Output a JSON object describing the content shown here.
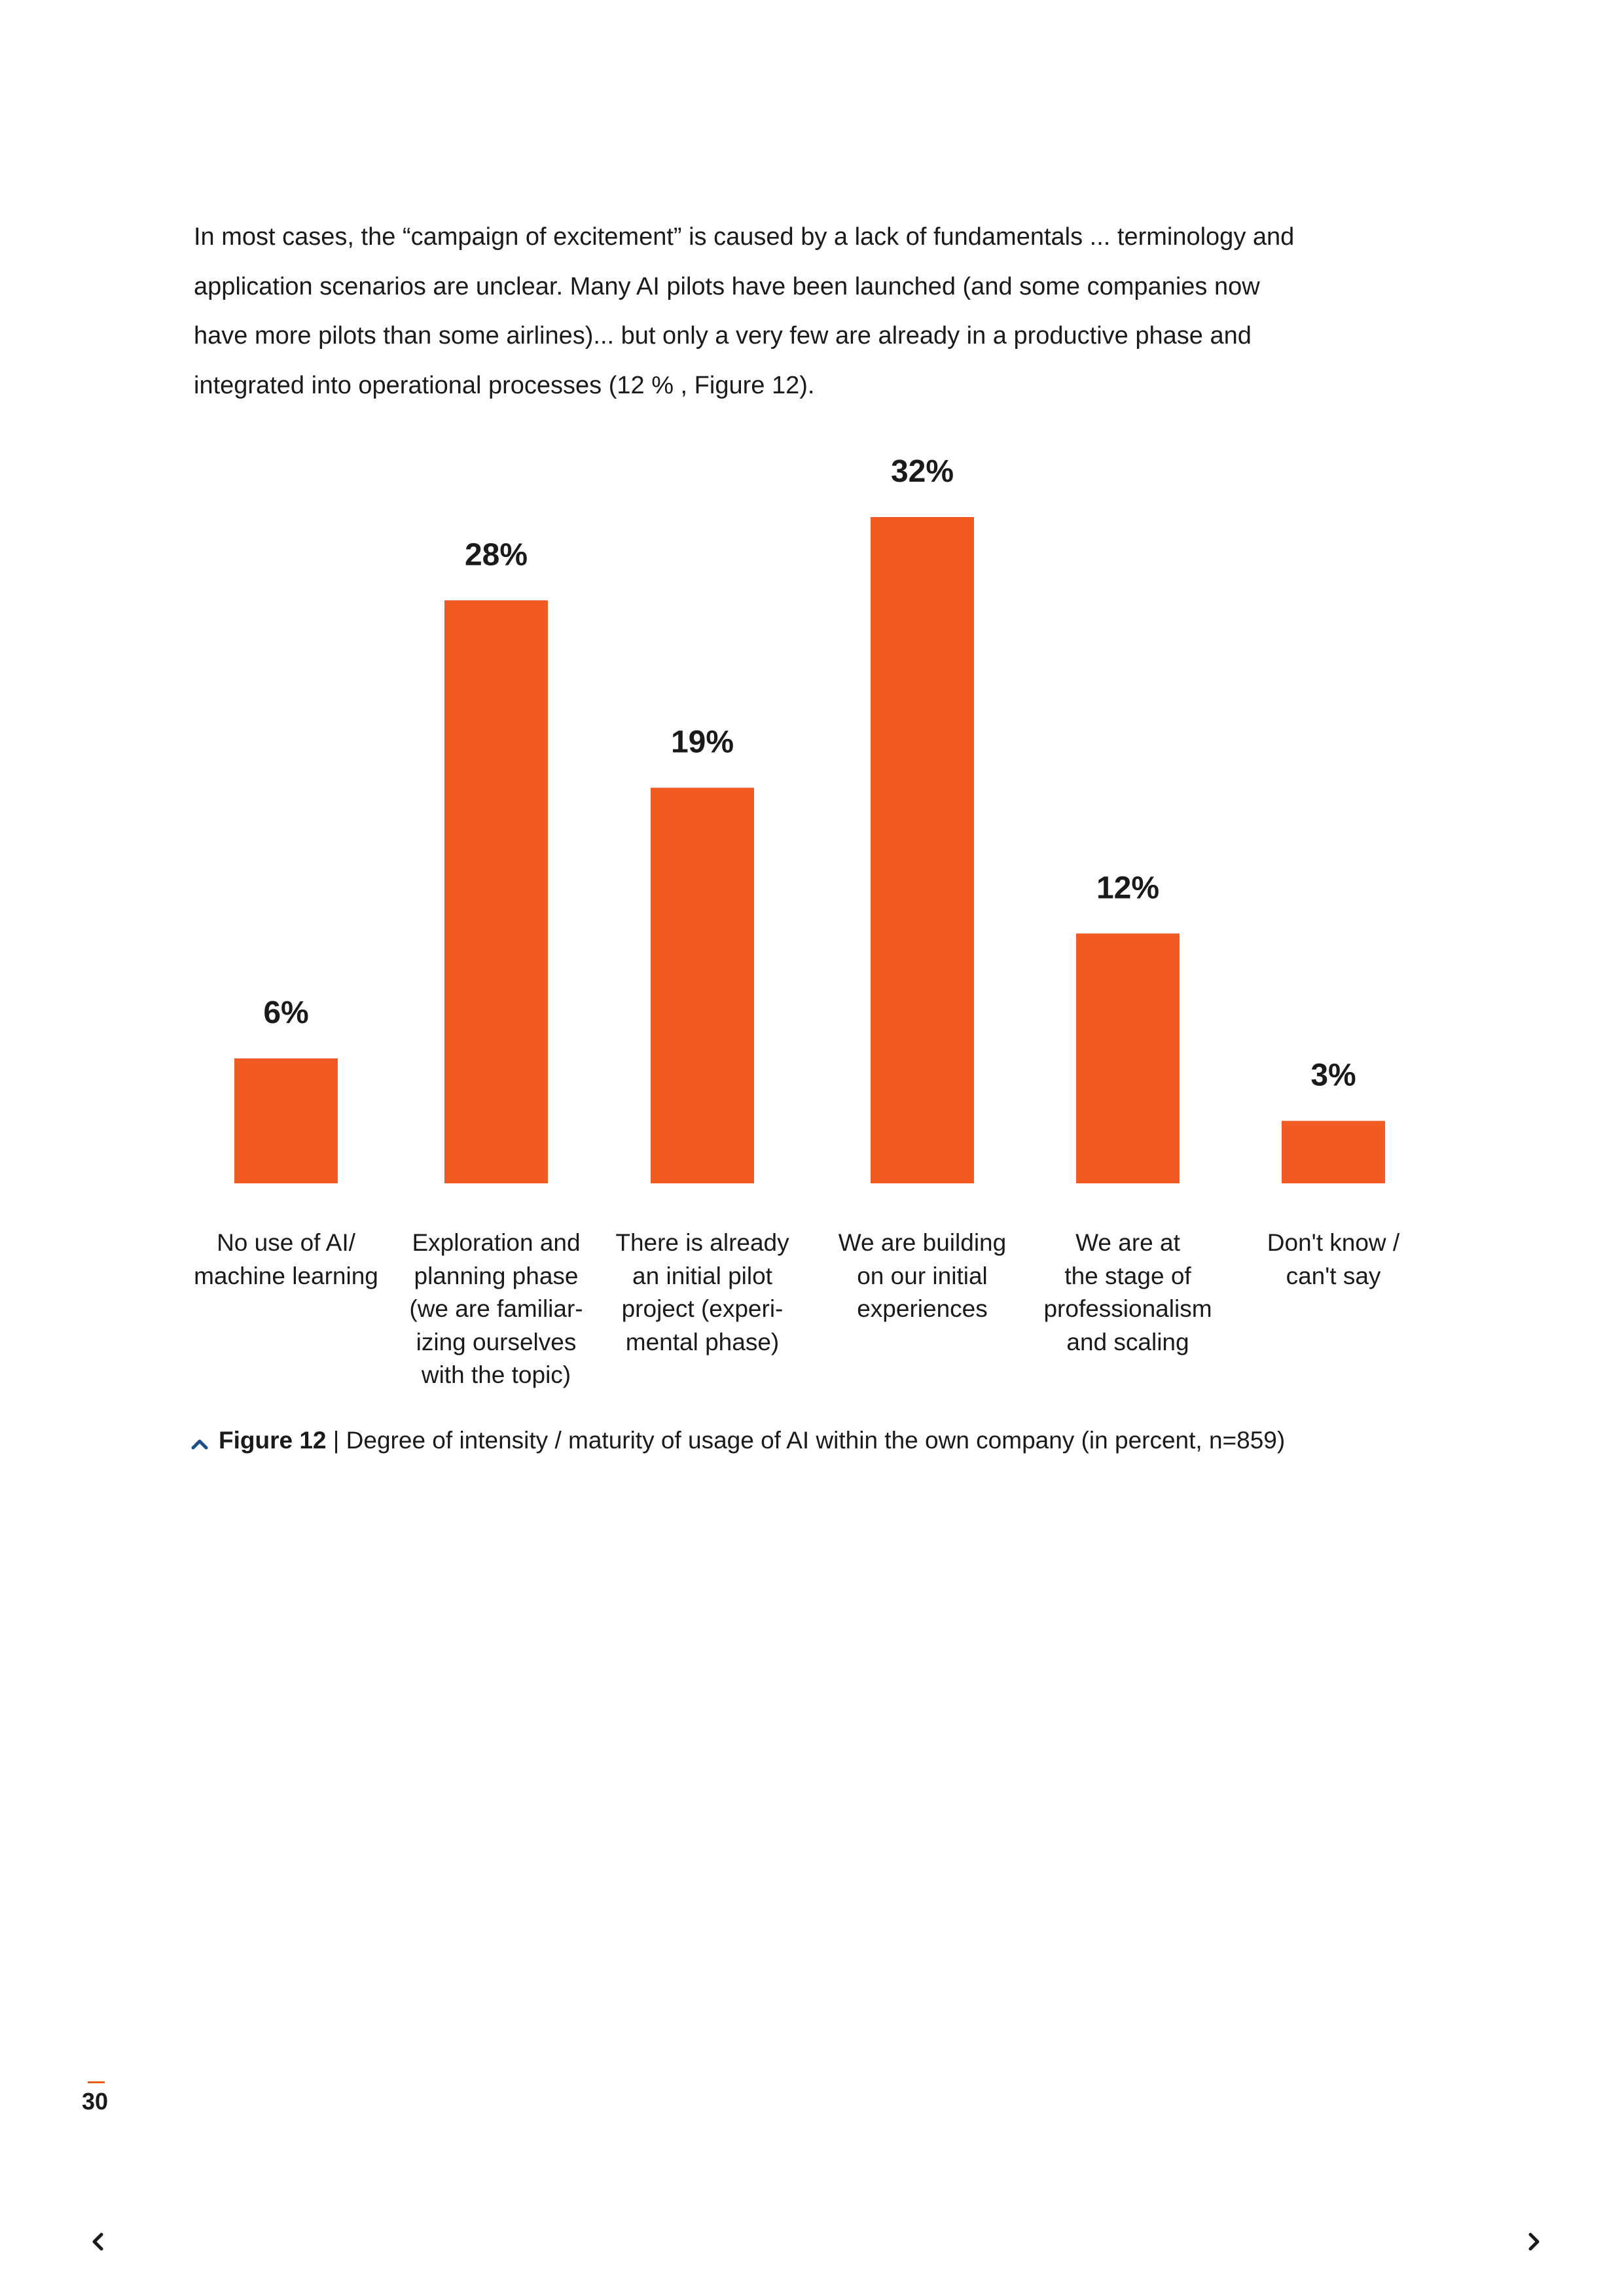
{
  "intro_text": "In most cases, the “campaign of excitement” is caused by a lack of fundamentals ... terminology and application scenarios are unclear. Many AI pilots have been launched (and some companies now have more pilots than some airlines)... but only a very few are already in a productive phase and integrated into operational processes (12 % , Figure 12).",
  "chart_data": {
    "type": "bar",
    "categories": [
      "No use of AI/\nmachine learning",
      "Exploration and\nplanning phase\n(we are familiar-\nizing ourselves\nwith the topic)",
      "There is already\nan initial pilot\nproject (experi-\nmental phase)",
      "We are building\non our initial\nexperiences",
      "We are at\nthe stage of\nprofessionalism\nand scaling",
      "Don't know /\ncan't say"
    ],
    "values": [
      6,
      28,
      19,
      32,
      12,
      3
    ],
    "value_labels": [
      "6%",
      "28%",
      "19%",
      "32%",
      "12%",
      "3%"
    ],
    "title": "",
    "xlabel": "",
    "ylabel": "",
    "ylim": [
      0,
      32
    ],
    "bar_color": "#f15a22",
    "grid": false,
    "legend": "none"
  },
  "caption": {
    "label": "Figure 12",
    "separator": " | ",
    "text": "Degree of intensity / maturity of usage of AI within the own company (in percent, n=859)"
  },
  "page_number": "30",
  "colors": {
    "accent": "#f15a22",
    "caption_icon": "#1b4f8a",
    "text": "#1a1a1a"
  },
  "nav": {
    "prev_icon": "chevron-left-icon",
    "next_icon": "chevron-right-icon"
  }
}
